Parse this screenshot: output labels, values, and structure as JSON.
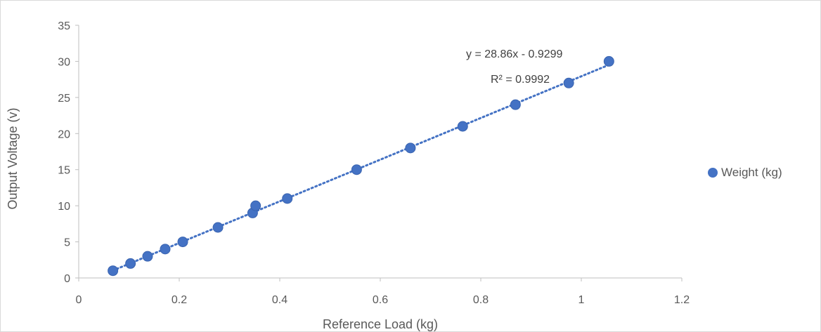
{
  "chart_data": {
    "type": "scatter",
    "title": "",
    "xlabel": "Reference Load (kg)",
    "ylabel": "Output Voltage (v)",
    "xlim": [
      0,
      1.2
    ],
    "ylim": [
      0,
      35
    ],
    "xticks": [
      "0",
      "0.2",
      "0.4",
      "0.6",
      "0.8",
      "1",
      "1.2"
    ],
    "yticks": [
      "0",
      "5",
      "10",
      "15",
      "20",
      "25",
      "30",
      "35"
    ],
    "grid": false,
    "legend_position": "right",
    "series": [
      {
        "name": "Weight (kg)",
        "color": "#4472c4",
        "points": [
          {
            "x": 0.068,
            "y": 1
          },
          {
            "x": 0.103,
            "y": 2
          },
          {
            "x": 0.137,
            "y": 3
          },
          {
            "x": 0.172,
            "y": 4
          },
          {
            "x": 0.207,
            "y": 5
          },
          {
            "x": 0.277,
            "y": 7
          },
          {
            "x": 0.346,
            "y": 9
          },
          {
            "x": 0.352,
            "y": 10
          },
          {
            "x": 0.415,
            "y": 11
          },
          {
            "x": 0.553,
            "y": 15
          },
          {
            "x": 0.66,
            "y": 18
          },
          {
            "x": 0.764,
            "y": 21
          },
          {
            "x": 0.869,
            "y": 24
          },
          {
            "x": 0.975,
            "y": 27
          },
          {
            "x": 1.055,
            "y": 30
          }
        ]
      }
    ],
    "trendline": {
      "type": "linear",
      "slope": 28.86,
      "intercept": -0.9299,
      "equation": "y = 28.86x - 0.9299",
      "r_squared": "R² = 0.9992",
      "style": "dotted",
      "color": "#4472c4"
    }
  }
}
